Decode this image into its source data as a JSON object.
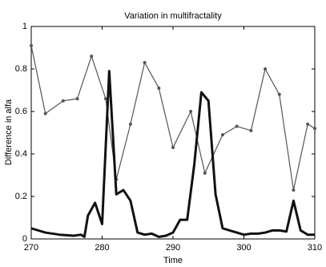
{
  "chart_data": {
    "type": "line",
    "title": "Variation in multifractality",
    "xlabel": "Time",
    "ylabel": "Difference in alfa",
    "xlim": [
      270,
      310
    ],
    "xticks": [
      270,
      280,
      290,
      300,
      310
    ],
    "ylim": [
      0,
      1
    ],
    "yticks": [
      0,
      0.2,
      0.4,
      0.6,
      0.8,
      1
    ],
    "series": [
      {
        "color": "#555555",
        "markers": true,
        "width": 1.2,
        "x": [
          270,
          272,
          274.5,
          276.5,
          278.5,
          280.5,
          282,
          284,
          286,
          288,
          290,
          292.5,
          294.5,
          297,
          299,
          301,
          303,
          305,
          307,
          309,
          310
        ],
        "values": [
          0.91,
          0.59,
          0.65,
          0.66,
          0.86,
          0.66,
          0.28,
          0.54,
          0.83,
          0.71,
          0.43,
          0.6,
          0.31,
          0.49,
          0.53,
          0.51,
          0.8,
          0.68,
          0.23,
          0.54,
          0.52
        ]
      },
      {
        "color": "#111111",
        "markers": false,
        "width": 3,
        "x": [
          270,
          272,
          274,
          276,
          277,
          277.5,
          278,
          279,
          280,
          281,
          282,
          283,
          284,
          285,
          286,
          287,
          288,
          289,
          290,
          291,
          292,
          293,
          294,
          295,
          296,
          297,
          298,
          299,
          300,
          301,
          302,
          303,
          304,
          305,
          306,
          307,
          308,
          309,
          310
        ],
        "values": [
          0.05,
          0.03,
          0.02,
          0.015,
          0.02,
          0.01,
          0.11,
          0.17,
          0.07,
          0.79,
          0.21,
          0.23,
          0.18,
          0.03,
          0.02,
          0.025,
          0.01,
          0.015,
          0.03,
          0.09,
          0.09,
          0.35,
          0.69,
          0.65,
          0.21,
          0.05,
          0.04,
          0.03,
          0.02,
          0.025,
          0.025,
          0.03,
          0.04,
          0.04,
          0.035,
          0.18,
          0.04,
          0.02,
          0.02
        ]
      }
    ]
  }
}
